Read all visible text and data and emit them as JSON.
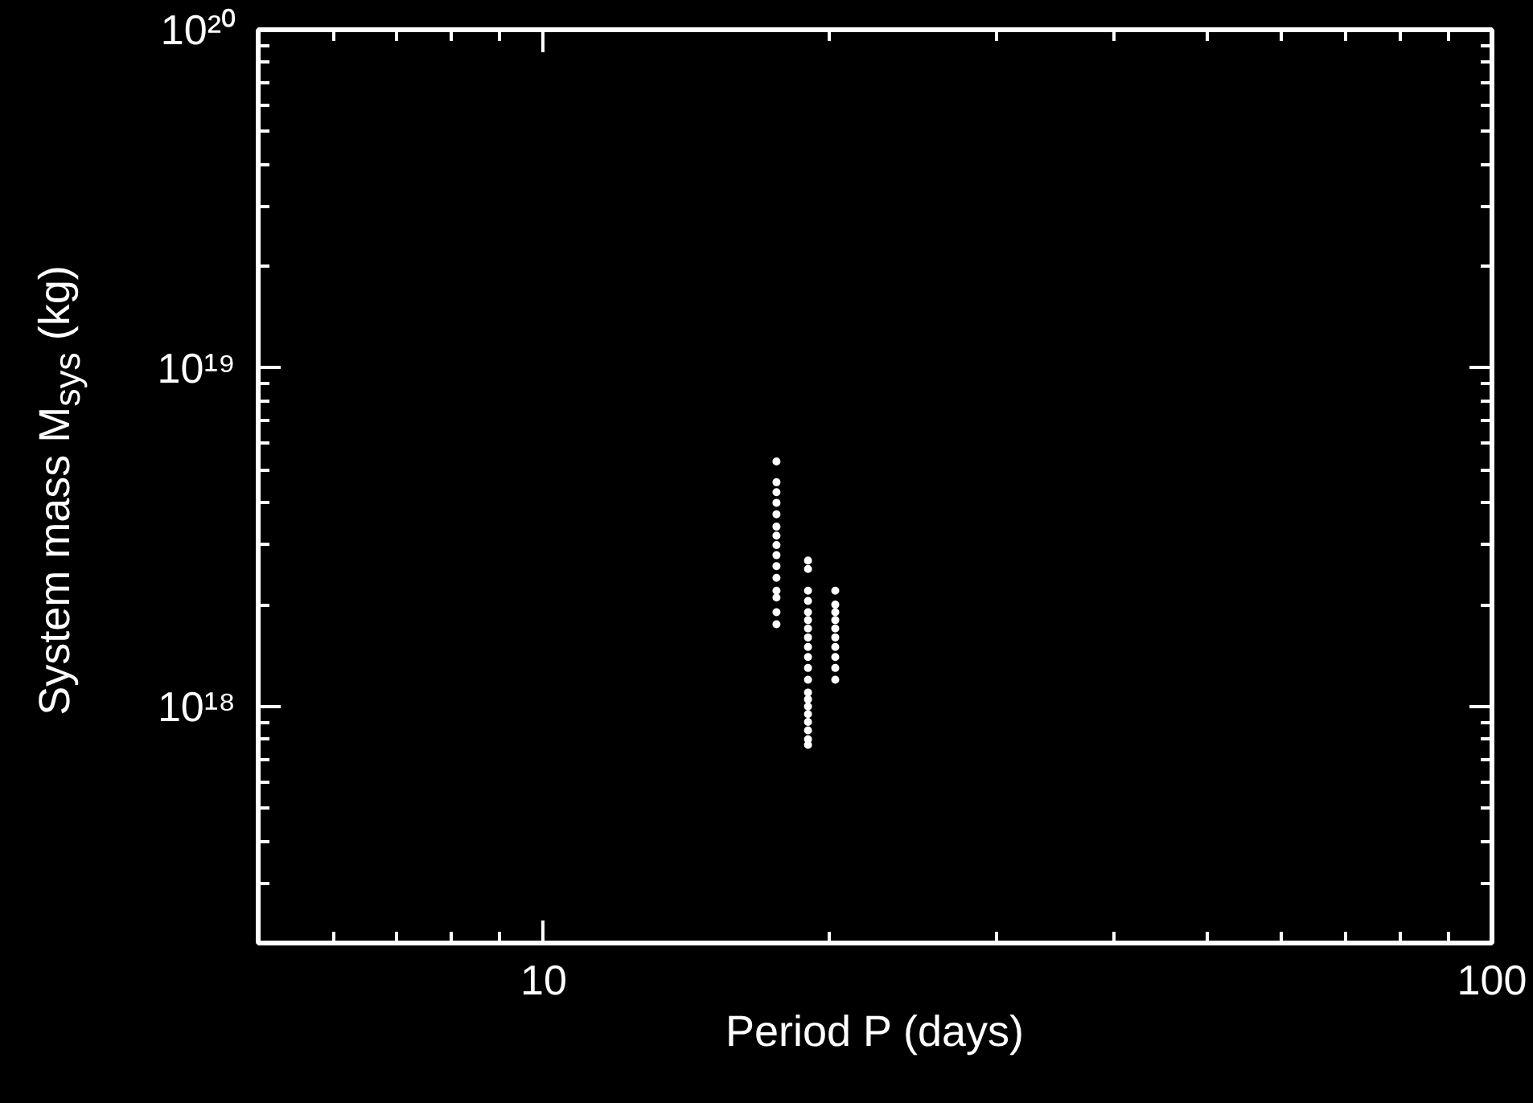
{
  "chart_data": {
    "type": "scatter",
    "xlabel": "Period P (days)",
    "ylabel": "System mass M$_{sys}$ (kg)",
    "log": "xy",
    "grid": false,
    "marker": "circle",
    "xlim": [
      5,
      100
    ],
    "xticks": [
      10,
      100
    ],
    "ylim": [
      2e+17,
      1e+20
    ],
    "yticks": [
      {
        "value": 1e+18,
        "label": "10¹⁸"
      },
      {
        "value": 1e+19,
        "label": "10¹⁹"
      },
      {
        "value": 1e+20,
        "label": "10²⁰"
      }
    ],
    "series": [
      {
        "color": "#ffffff",
        "x": [
          17.6,
          17.6,
          17.6,
          17.6,
          17.6,
          17.6,
          17.6,
          17.6,
          17.6,
          17.6,
          17.6,
          17.6,
          17.6,
          17.6,
          17.6,
          19.0,
          19.0,
          19.0,
          19.0,
          19.0,
          19.0,
          19.0,
          19.0,
          19.0,
          19.0,
          19.0,
          19.0,
          19.0,
          19.0,
          19.0,
          19.0,
          19.0,
          19.0,
          19.0,
          19.0,
          20.3,
          20.3,
          20.3,
          20.3,
          20.3,
          20.3,
          20.3,
          20.3,
          20.3,
          20.3
        ],
        "values": [
          5.3e+18,
          4.6e+18,
          4.3e+18,
          4e+18,
          3.7e+18,
          3.4e+18,
          3.2e+18,
          3e+18,
          2.8e+18,
          2.6e+18,
          2.4e+18,
          2.2e+18,
          2.1e+18,
          1.9e+18,
          1.75e+18,
          2.7e+18,
          2.55e+18,
          2.2e+18,
          2.05e+18,
          1.9e+18,
          1.8e+18,
          1.7e+18,
          1.6e+18,
          1.5e+18,
          1.4e+18,
          1.3e+18,
          1.2e+18,
          1.1e+18,
          1.05e+18,
          1e+18,
          9.5e+17,
          9e+17,
          8.5e+17,
          8e+17,
          7.7e+17,
          2.2e+18,
          2e+18,
          1.9e+18,
          1.8e+18,
          1.7e+18,
          1.6e+18,
          1.5e+18,
          1.4e+18,
          1.3e+18,
          1.2e+18
        ]
      }
    ]
  }
}
